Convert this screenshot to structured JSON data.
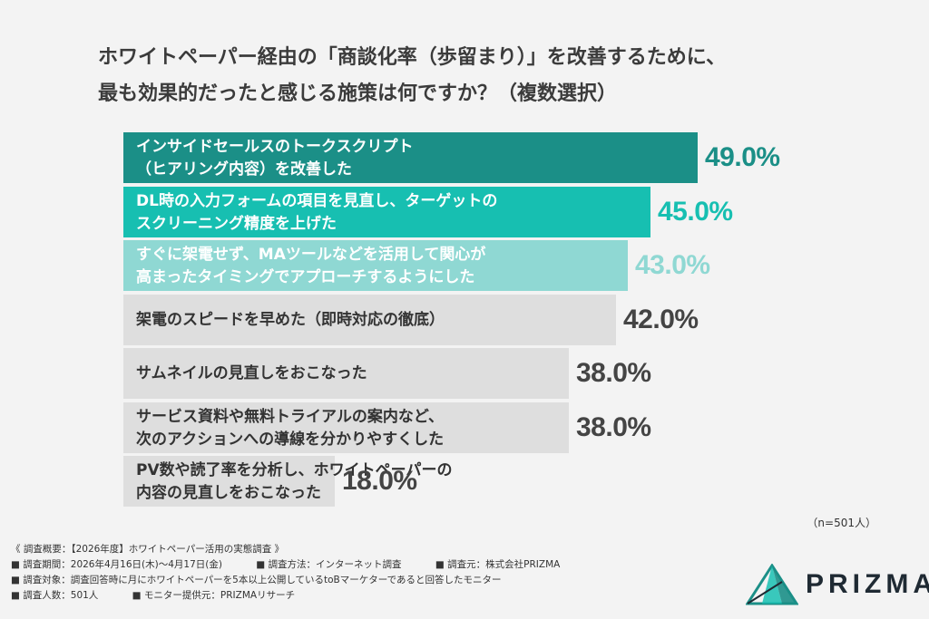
{
  "title_lines": [
    "ホワイトペーパー経由の「商談化率（歩留まり）」を改善するために、",
    "最も効果的だったと感じる施策は何ですか？（複数選択）"
  ],
  "chart_data": {
    "type": "bar",
    "orientation": "horizontal",
    "categories": [
      [
        "インサイドセールスのトークスクリプト",
        "（ヒアリング内容）を改善した"
      ],
      [
        "DL時の入力フォームの項目を見直し、ターゲットの",
        "スクリーニング精度を上げた"
      ],
      [
        "すぐに架電せず、MAツールなどを活用して関心が",
        "高まったタイミングでアプローチするようにした"
      ],
      [
        "架電のスピードを早めた（即時対応の徹底）"
      ],
      [
        "サムネイルの見直しをおこなった"
      ],
      [
        "サービス資料や無料トライアルの案内など、",
        "次のアクションへの導線を分かりやすくした"
      ],
      [
        "PV数や読了率を分析し、ホワイトペーパーの",
        "内容の見直しをおこなった"
      ]
    ],
    "values": [
      49.0,
      45.0,
      43.0,
      42.0,
      38.0,
      38.0,
      18.0
    ],
    "value_labels": [
      "49.0%",
      "45.0%",
      "43.0%",
      "42.0%",
      "38.0%",
      "38.0%",
      "18.0%"
    ],
    "bar_colors": [
      "#1b8f87",
      "#17bfb1",
      "#8fd8d3",
      "#dedede",
      "#dedede",
      "#dedede",
      "#dedede"
    ],
    "text_colors": [
      "#ffffff",
      "#ffffff",
      "#ffffff",
      "#333333",
      "#333333",
      "#333333",
      "#333333"
    ],
    "value_colors": [
      "#1b8f87",
      "#17bfb1",
      "#8fd8d3",
      "#444444",
      "#444444",
      "#444444",
      "#444444"
    ],
    "xlim": [
      0,
      50
    ],
    "grid": false
  },
  "sample_size": "（n=501人）",
  "footer": {
    "overview": "《 調査概要：【2026年度】ホワイトペーパー活用の実態調査 》",
    "period": "■ 調査期間：2026年4月16日(木)〜4月17日(金)",
    "method": "■ 調査方法：インターネット調査",
    "organizer": "■ 調査元：株式会社PRIZMA",
    "target": "■ 調査対象：調査回答時に月にホワイトペーパーを5本以上公開しているtoBマーケターであると回答したモニター",
    "respondents": "■ 調査人数：501人",
    "provider": "■ モニター提供元：PRIZMAリサーチ"
  },
  "logo": {
    "text": "PRIZMA",
    "icon": "prizma-triangle-icon",
    "colors": [
      "#1b8f87",
      "#17bfb1",
      "#1f2a33"
    ]
  }
}
